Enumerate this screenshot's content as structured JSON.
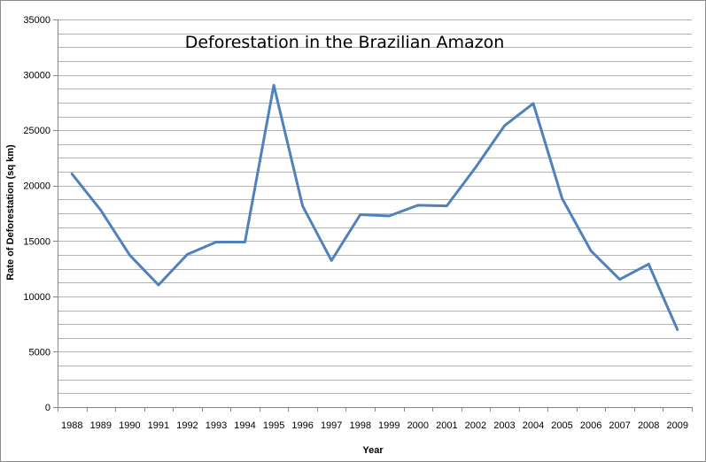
{
  "chart_data": {
    "type": "line",
    "title": "Deforestation in the Brazilian Amazon",
    "xlabel": "Year",
    "ylabel": "Rate of Deforestation (sq km)",
    "categories": [
      "1988",
      "1989",
      "1990",
      "1991",
      "1992",
      "1993",
      "1994",
      "1995",
      "1996",
      "1997",
      "1998",
      "1999",
      "2000",
      "2001",
      "2002",
      "2003",
      "2004",
      "2005",
      "2006",
      "2007",
      "2008",
      "2009"
    ],
    "series": [
      {
        "values": [
          21050,
          17770,
          13730,
          11030,
          13790,
          14900,
          14900,
          29060,
          18160,
          13230,
          17380,
          17260,
          18230,
          18170,
          21650,
          25400,
          27420,
          18850,
          14110,
          11530,
          12910,
          7000
        ],
        "color": "#4f81bd"
      }
    ],
    "ylim": [
      0,
      35000
    ],
    "yticks": [
      0,
      5000,
      10000,
      15000,
      20000,
      25000,
      30000,
      35000
    ],
    "grid": true,
    "legend": "none"
  }
}
